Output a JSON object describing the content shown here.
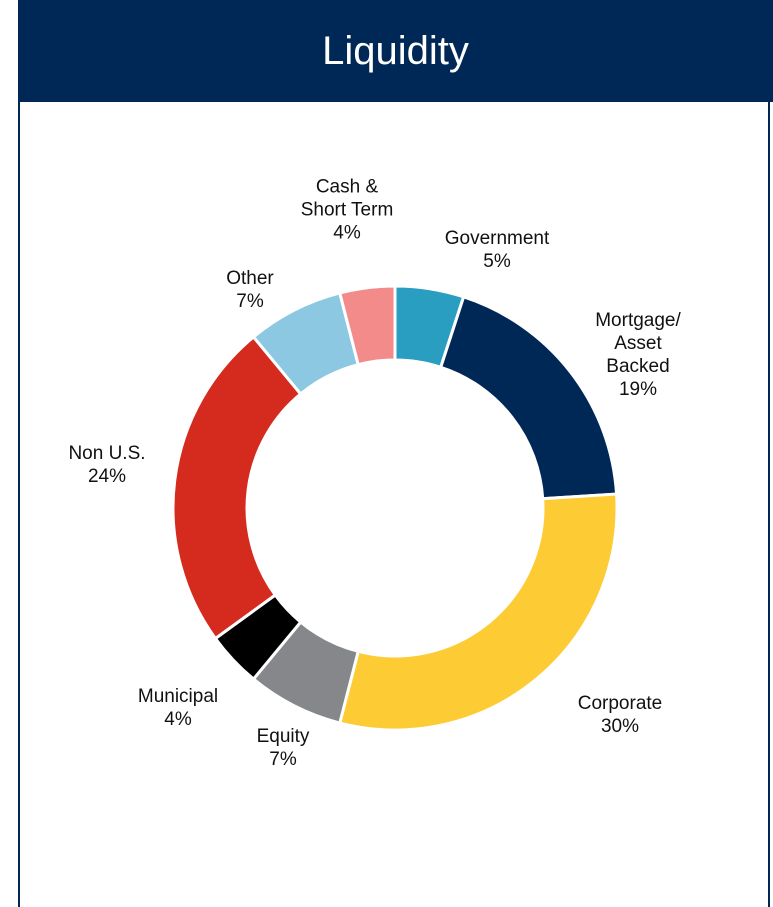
{
  "chart_data": {
    "type": "donut",
    "title": "Liquidity",
    "categories": [
      "Government",
      "Mortgage/\nAsset\nBacked",
      "Corporate",
      "Equity",
      "Municipal",
      "Non U.S.",
      "Other",
      "Cash &\nShort Term"
    ],
    "values": [
      5,
      19,
      30,
      7,
      4,
      24,
      7,
      4
    ],
    "value_labels": [
      "5%",
      "19%",
      "30%",
      "7%",
      "4%",
      "24%",
      "7%",
      "4%"
    ],
    "colors": [
      "#2a9ec0",
      "#002856",
      "#fdcb33",
      "#86878a",
      "#000000",
      "#d52b1e",
      "#8dc8e3",
      "#f28b8a"
    ]
  }
}
